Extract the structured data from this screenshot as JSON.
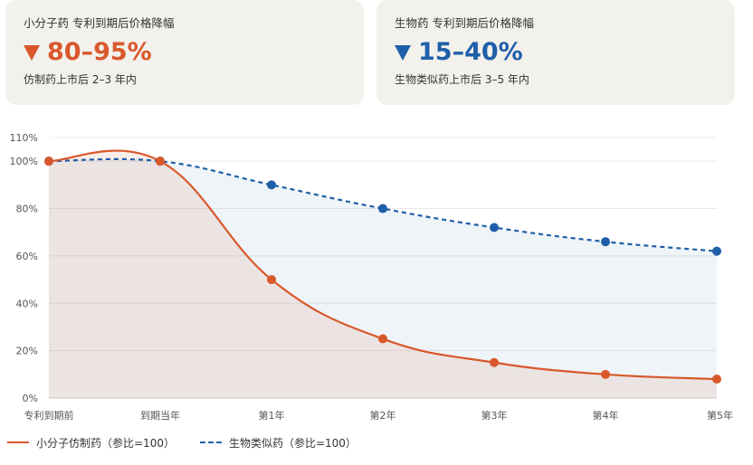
{
  "cards": [
    {
      "title": "小分子药 专利到期后价格降幅",
      "value": "80–95%",
      "note": "仿制药上市后 2–3 年内",
      "color": "#d9582b"
    },
    {
      "title": "生物药 专利到期后价格降幅",
      "value": "15–40%",
      "note": "生物类似药上市后 3–5 年内",
      "color": "#1f5fa9"
    }
  ],
  "chart_data": {
    "type": "line",
    "categories": [
      "专利到期前",
      "到期当年",
      "第1年",
      "第2年",
      "第3年",
      "第4年",
      "第5年"
    ],
    "ylim": [
      0,
      110
    ],
    "yticks": [
      0,
      20,
      40,
      60,
      80,
      100,
      110
    ],
    "ytick_labels": [
      "0%",
      "20%",
      "40%",
      "60%",
      "80%",
      "100%",
      "110%"
    ],
    "grid": true,
    "legend_position": "bottom-left",
    "series": [
      {
        "name": "小分子仿制药（参比=100）",
        "values": [
          100,
          100,
          50,
          25,
          15,
          10,
          8
        ],
        "color": "#d9582b",
        "fill": "rgba(217,88,43,0.10)",
        "dash": false
      },
      {
        "name": "生物类似药（参比=100）",
        "values": [
          100,
          100,
          90,
          80,
          72,
          66,
          62
        ],
        "color": "#1f5fa9",
        "fill": "rgba(31,95,169,0.07)",
        "dash": true
      }
    ]
  }
}
